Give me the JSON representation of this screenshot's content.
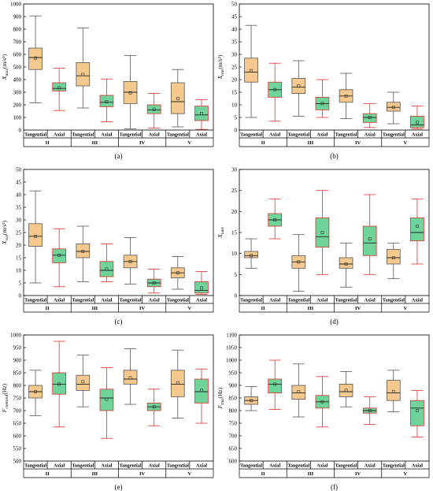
{
  "style": {
    "tangential_fill": "#f5c98e",
    "axial_fill": "#6fd49a",
    "tangential_whisker": "#555555",
    "axial_whisker": "#e0302a",
    "median_color": "#222222",
    "mean_color": "#333333"
  },
  "groups": [
    "II",
    "III",
    "IV",
    "V"
  ],
  "position_labels": [
    "Tangential",
    "Axial"
  ],
  "chart_data": [
    {
      "id": "a",
      "type": "box",
      "panel_label": "(a)",
      "ylabel": "X_max(m/s²)",
      "ylabel_main": "X",
      "ylabel_sub": "max",
      "ylabel_unit": "(m/s²)",
      "ylim": [
        0,
        1000
      ],
      "yticks": [
        0,
        100,
        200,
        300,
        400,
        500,
        600,
        700,
        800,
        900,
        1000
      ],
      "boxes": [
        {
          "group": "II",
          "series": "Tangential",
          "min": 215,
          "q1": 480,
          "median": 575,
          "q3": 650,
          "max": 905,
          "mean": 570
        },
        {
          "group": "II",
          "series": "Axial",
          "min": 155,
          "q1": 310,
          "median": 330,
          "q3": 375,
          "max": 490,
          "mean": 335
        },
        {
          "group": "III",
          "series": "Tangential",
          "min": 175,
          "q1": 350,
          "median": 430,
          "q3": 535,
          "max": 810,
          "mean": 440
        },
        {
          "group": "III",
          "series": "Axial",
          "min": 65,
          "q1": 185,
          "median": 220,
          "q3": 275,
          "max": 405,
          "mean": 225
        },
        {
          "group": "IV",
          "series": "Tangential",
          "min": 10,
          "q1": 210,
          "median": 300,
          "q3": 385,
          "max": 590,
          "mean": 295
        },
        {
          "group": "IV",
          "series": "Axial",
          "min": 15,
          "q1": 130,
          "median": 160,
          "q3": 200,
          "max": 290,
          "mean": 165
        },
        {
          "group": "V",
          "series": "Tangential",
          "min": 25,
          "q1": 130,
          "median": 225,
          "q3": 375,
          "max": 480,
          "mean": 250
        },
        {
          "group": "V",
          "series": "Axial",
          "min": 5,
          "q1": 75,
          "median": 120,
          "q3": 190,
          "max": 240,
          "mean": 130
        }
      ]
    },
    {
      "id": "b",
      "type": "box",
      "panel_label": "(b)",
      "ylabel": "X_rms(m/s²)",
      "ylabel_main": "X",
      "ylabel_sub": "rms",
      "ylabel_unit": "(m/s²)",
      "ylim": [
        0,
        50
      ],
      "yticks": [
        0,
        5,
        10,
        15,
        20,
        25,
        30,
        35,
        40,
        45,
        50
      ],
      "boxes": [
        {
          "group": "II",
          "series": "Tangential",
          "min": 5,
          "q1": 19,
          "median": 23,
          "q3": 28.5,
          "max": 41.5,
          "mean": 23.5
        },
        {
          "group": "II",
          "series": "Axial",
          "min": 3.5,
          "q1": 13,
          "median": 16,
          "q3": 19,
          "max": 26.5,
          "mean": 16
        },
        {
          "group": "III",
          "series": "Tangential",
          "min": 5.5,
          "q1": 14.5,
          "median": 17,
          "q3": 20.5,
          "max": 27.5,
          "mean": 17.5
        },
        {
          "group": "III",
          "series": "Axial",
          "min": 5,
          "q1": 8,
          "median": 10.5,
          "q3": 13,
          "max": 20,
          "mean": 10.5
        },
        {
          "group": "IV",
          "series": "Tangential",
          "min": 4.5,
          "q1": 11,
          "median": 13.5,
          "q3": 16,
          "max": 22.5,
          "mean": 13.5
        },
        {
          "group": "IV",
          "series": "Axial",
          "min": 1,
          "q1": 3,
          "median": 5,
          "q3": 6.5,
          "max": 10.5,
          "mean": 5
        },
        {
          "group": "V",
          "series": "Tangential",
          "min": 2.5,
          "q1": 7.5,
          "median": 9,
          "q3": 11,
          "max": 15,
          "mean": 9
        },
        {
          "group": "V",
          "series": "Axial",
          "min": 0.5,
          "q1": 1,
          "median": 2,
          "q3": 5.5,
          "max": 9.5,
          "mean": 3
        }
      ]
    },
    {
      "id": "c",
      "type": "box",
      "panel_label": "(c)",
      "ylabel": "X_ave(m/s²)",
      "ylabel_main": "X",
      "ylabel_sub": "ave",
      "ylabel_unit": "(m/s²)",
      "ylim": [
        0,
        50
      ],
      "yticks": [
        0,
        5,
        10,
        15,
        20,
        25,
        30,
        35,
        40,
        45,
        50
      ],
      "boxes": [
        {
          "group": "II",
          "series": "Tangential",
          "min": 5,
          "q1": 19.5,
          "median": 23.5,
          "q3": 28.5,
          "max": 41.5,
          "mean": 23.5
        },
        {
          "group": "II",
          "series": "Axial",
          "min": 3.5,
          "q1": 13,
          "median": 16,
          "q3": 18.5,
          "max": 26.5,
          "mean": 16
        },
        {
          "group": "III",
          "series": "Tangential",
          "min": 5.5,
          "q1": 15,
          "median": 17.5,
          "q3": 20.5,
          "max": 27.5,
          "mean": 17.5
        },
        {
          "group": "III",
          "series": "Axial",
          "min": 5.5,
          "q1": 7.5,
          "median": 10,
          "q3": 13.5,
          "max": 20.5,
          "mean": 10.5
        },
        {
          "group": "IV",
          "series": "Tangential",
          "min": 4.5,
          "q1": 11,
          "median": 13.5,
          "q3": 16,
          "max": 23,
          "mean": 13.5
        },
        {
          "group": "IV",
          "series": "Axial",
          "min": 1,
          "q1": 3.5,
          "median": 5,
          "q3": 6.5,
          "max": 10.5,
          "mean": 5
        },
        {
          "group": "V",
          "series": "Tangential",
          "min": 2.5,
          "q1": 7,
          "median": 9,
          "q3": 11,
          "max": 15.5,
          "mean": 9
        },
        {
          "group": "V",
          "series": "Axial",
          "min": 0.5,
          "q1": 1,
          "median": 2,
          "q3": 5.5,
          "max": 9.5,
          "mean": 3
        }
      ]
    },
    {
      "id": "d",
      "type": "box",
      "panel_label": "(d)",
      "ylabel": "X_kurt",
      "ylabel_main": "X",
      "ylabel_sub": "kurt",
      "ylabel_unit": "",
      "ylim": [
        0,
        30
      ],
      "yticks": [
        0,
        5,
        10,
        15,
        20,
        25,
        30
      ],
      "boxes": [
        {
          "group": "II",
          "series": "Tangential",
          "min": 6.5,
          "q1": 9,
          "median": 9.5,
          "q3": 10.5,
          "max": 13.5,
          "mean": 9.5
        },
        {
          "group": "II",
          "series": "Axial",
          "min": 13.5,
          "q1": 16.5,
          "median": 18,
          "q3": 19.5,
          "max": 23,
          "mean": 18
        },
        {
          "group": "III",
          "series": "Tangential",
          "min": 1,
          "q1": 6.5,
          "median": 8,
          "q3": 9.5,
          "max": 14.5,
          "mean": 8
        },
        {
          "group": "III",
          "series": "Axial",
          "min": 5,
          "q1": 11.5,
          "median": 14,
          "q3": 18.5,
          "max": 25,
          "mean": 15
        },
        {
          "group": "IV",
          "series": "Tangential",
          "min": 2,
          "q1": 6.5,
          "median": 7.5,
          "q3": 9,
          "max": 12.5,
          "mean": 7.5
        },
        {
          "group": "IV",
          "series": "Axial",
          "min": 5,
          "q1": 9.5,
          "median": 12.5,
          "q3": 16.5,
          "max": 24,
          "mean": 13.5
        },
        {
          "group": "V",
          "series": "Tangential",
          "min": 4,
          "q1": 7.5,
          "median": 9,
          "q3": 11,
          "max": 12.5,
          "mean": 9
        },
        {
          "group": "V",
          "series": "Axial",
          "min": 7.5,
          "q1": 13,
          "median": 15,
          "q3": 18.5,
          "max": 23,
          "mean": 16.5
        }
      ]
    },
    {
      "id": "e",
      "type": "box",
      "panel_label": "(e)",
      "ylabel": "F_centroid(Hz)",
      "ylabel_main": "F",
      "ylabel_sub": "centroid",
      "ylabel_unit": "(Hz)",
      "ylim": [
        500,
        1000
      ],
      "yticks": [
        500,
        550,
        600,
        650,
        700,
        750,
        800,
        850,
        900,
        950,
        1000
      ],
      "boxes": [
        {
          "group": "II",
          "series": "Tangential",
          "min": 680,
          "q1": 750,
          "median": 775,
          "q3": 800,
          "max": 860,
          "mean": 775
        },
        {
          "group": "II",
          "series": "Axial",
          "min": 635,
          "q1": 765,
          "median": 805,
          "q3": 850,
          "max": 975,
          "mean": 805
        },
        {
          "group": "III",
          "series": "Tangential",
          "min": 715,
          "q1": 780,
          "median": 805,
          "q3": 840,
          "max": 920,
          "mean": 815
        },
        {
          "group": "III",
          "series": "Axial",
          "min": 590,
          "q1": 700,
          "median": 750,
          "q3": 785,
          "max": 870,
          "mean": 745
        },
        {
          "group": "IV",
          "series": "Tangential",
          "min": 725,
          "q1": 805,
          "median": 825,
          "q3": 860,
          "max": 945,
          "mean": 830
        },
        {
          "group": "IV",
          "series": "Axial",
          "min": 640,
          "q1": 700,
          "median": 715,
          "q3": 730,
          "max": 785,
          "mean": 715
        },
        {
          "group": "V",
          "series": "Tangential",
          "min": 670,
          "q1": 755,
          "median": 805,
          "q3": 860,
          "max": 940,
          "mean": 810
        },
        {
          "group": "V",
          "series": "Axial",
          "min": 650,
          "q1": 730,
          "median": 775,
          "q3": 825,
          "max": 865,
          "mean": 780
        }
      ]
    },
    {
      "id": "f",
      "type": "box",
      "panel_label": "(f)",
      "ylabel": "F_rms(Hz)",
      "ylabel_main": "F",
      "ylabel_sub": "rms",
      "ylabel_unit": "(Hz)",
      "ylim": [
        600,
        1100
      ],
      "yticks": [
        600,
        650,
        700,
        750,
        800,
        850,
        900,
        950,
        1000,
        1050,
        1100
      ],
      "boxes": [
        {
          "group": "II",
          "series": "Tangential",
          "min": 800,
          "q1": 825,
          "median": 840,
          "q3": 855,
          "max": 895,
          "mean": 840
        },
        {
          "group": "II",
          "series": "Axial",
          "min": 805,
          "q1": 870,
          "median": 905,
          "q3": 925,
          "max": 1000,
          "mean": 905
        },
        {
          "group": "III",
          "series": "Tangential",
          "min": 775,
          "q1": 845,
          "median": 870,
          "q3": 900,
          "max": 985,
          "mean": 875
        },
        {
          "group": "III",
          "series": "Axial",
          "min": 735,
          "q1": 810,
          "median": 835,
          "q3": 860,
          "max": 935,
          "mean": 835
        },
        {
          "group": "IV",
          "series": "Tangential",
          "min": 815,
          "q1": 855,
          "median": 875,
          "q3": 905,
          "max": 955,
          "mean": 880
        },
        {
          "group": "IV",
          "series": "Axial",
          "min": 745,
          "q1": 790,
          "median": 800,
          "q3": 810,
          "max": 855,
          "mean": 800
        },
        {
          "group": "V",
          "series": "Tangential",
          "min": 795,
          "q1": 840,
          "median": 870,
          "q3": 920,
          "max": 960,
          "mean": 875
        },
        {
          "group": "V",
          "series": "Axial",
          "min": 695,
          "q1": 740,
          "median": 810,
          "q3": 840,
          "max": 880,
          "mean": 800
        }
      ]
    }
  ]
}
